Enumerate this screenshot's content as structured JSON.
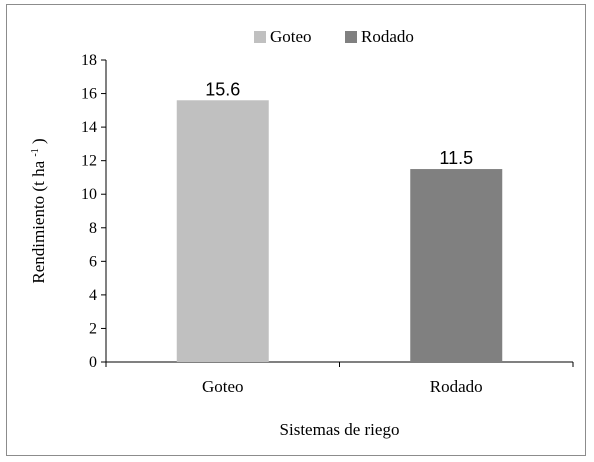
{
  "chart_data": {
    "type": "bar",
    "categories": [
      "Goteo",
      "Rodado"
    ],
    "series": [
      {
        "name": "Goteo",
        "values": [
          15.6,
          null
        ],
        "color": "#c0c0c0"
      },
      {
        "name": "Rodado",
        "values": [
          null,
          11.5
        ],
        "color": "#808080"
      }
    ],
    "values": [
      15.6,
      11.5
    ],
    "data_labels": [
      "15.6",
      "11.5"
    ],
    "xlabel": "Sistemas de riego",
    "ylabel": "Rendimiento (t ha",
    "ylabel_superscript": "-1",
    "ylabel_close": ")",
    "ylim": [
      0,
      18
    ],
    "yticks": [
      "0",
      "2",
      "4",
      "6",
      "8",
      "10",
      "12",
      "14",
      "16",
      "18"
    ],
    "grid": false,
    "legend": {
      "position": "top",
      "items": [
        {
          "label": "Goteo",
          "color": "#c0c0c0"
        },
        {
          "label": "Rodado",
          "color": "#808080"
        }
      ]
    }
  }
}
